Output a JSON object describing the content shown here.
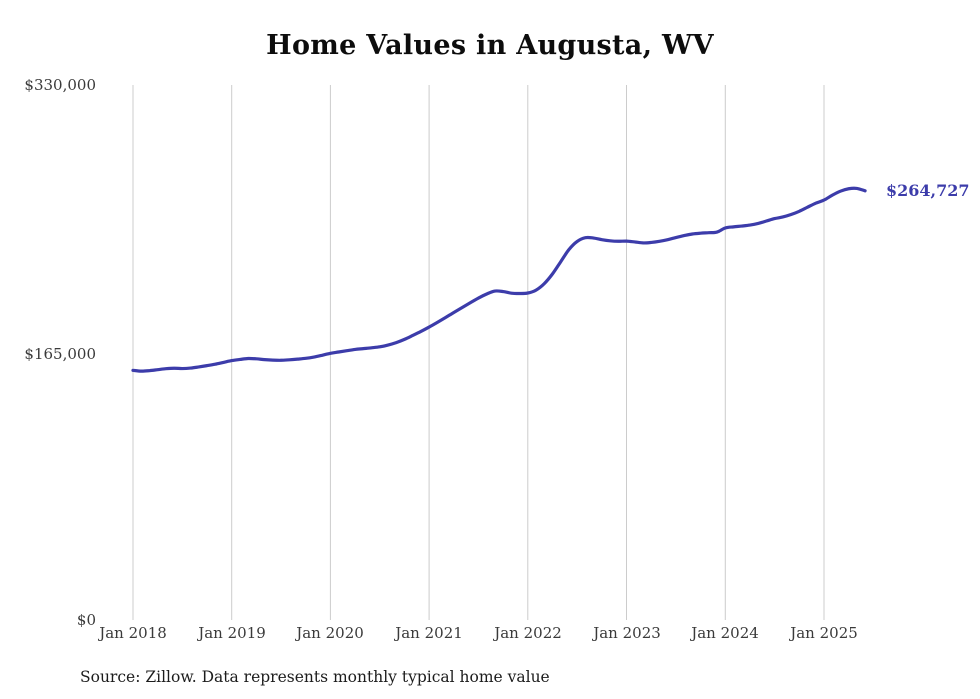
{
  "title": "Home Values in Augusta, WV",
  "source_note": "Source: Zillow. Data represents monthly typical home value",
  "end_label": "$264,727",
  "colors": {
    "line": "#3c3caa",
    "gridline": "#cccccc",
    "title_text": "#0d0d0d",
    "tick_text": "#3a3a3a"
  },
  "chart_data": {
    "type": "line",
    "title": "Home Values in Augusta, WV",
    "series_name": "Monthly typical home value",
    "x_start": "Jan 2018",
    "x_end": "Jun 2025",
    "x_frequency": "monthly",
    "x_tick_labels": [
      "Jan 2018",
      "Jan 2019",
      "Jan 2020",
      "Jan 2021",
      "Jan 2022",
      "Jan 2023",
      "Jan 2024",
      "Jan 2025"
    ],
    "y_tick_labels": [
      "$330,000",
      "$165,000",
      "$0"
    ],
    "y_tick_values": [
      330000,
      165000,
      0
    ],
    "ylim": [
      0,
      330000
    ],
    "grid": "vertical-only",
    "legend": "none",
    "final_value": 264727,
    "values": [
      154000,
      153500,
      153800,
      154400,
      155000,
      155300,
      155100,
      155400,
      156100,
      156900,
      157800,
      158900,
      160000,
      160700,
      161300,
      161100,
      160600,
      160300,
      160200,
      160500,
      160900,
      161400,
      162200,
      163300,
      164500,
      165300,
      166100,
      166900,
      167400,
      167900,
      168500,
      169600,
      171100,
      173100,
      175500,
      178000,
      180700,
      183600,
      186600,
      189700,
      192700,
      195700,
      198600,
      201100,
      202900,
      202600,
      201600,
      201400,
      201700,
      203500,
      207500,
      213500,
      221000,
      228500,
      233500,
      235800,
      235600,
      234600,
      233900,
      233600,
      233700,
      233200,
      232600,
      232900,
      233600,
      234600,
      235900,
      237100,
      238100,
      238600,
      238900,
      239300,
      241800,
      242500,
      243000,
      243600,
      244600,
      246100,
      247600,
      248600,
      250100,
      252100,
      254600,
      257100,
      259000,
      262000,
      264500,
      266000,
      266200,
      264727
    ]
  }
}
